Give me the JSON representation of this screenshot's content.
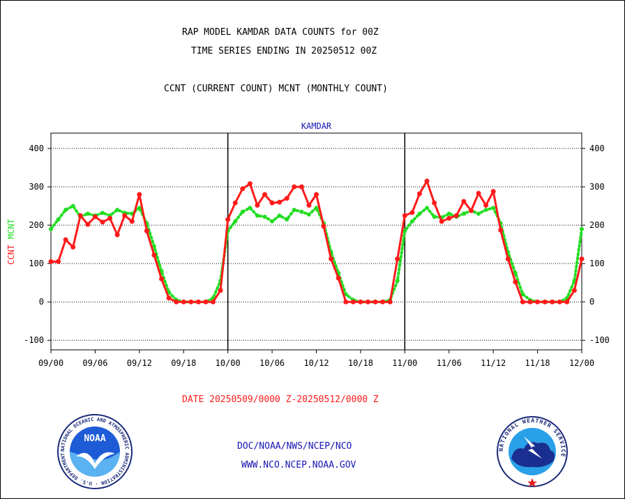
{
  "header": {
    "line1": "RAP MODEL KAMDAR DATA COUNTS for 00Z",
    "line2": "TIME SERIES ENDING IN 20250512 00Z",
    "line3": "CCNT (CURRENT COUNT) MCNT (MONTHLY COUNT)"
  },
  "footer": {
    "date_range": "DATE 20250509/0000 Z-20250512/0000 Z",
    "org": "DOC/NOAA/NWS/NCEP/NCO",
    "url": "WWW.NCO.NCEP.NOAA.GOV",
    "noaa_logo_text": "NOAA",
    "noaa_ring_text": "NATIONAL OCEANIC AND ATMOSPHERIC ADMINISTRATION · U.S. DEPARTMENT OF COMMERCE",
    "nws_ring_text": "NATIONAL WEATHER SERVICE"
  },
  "colors": {
    "ccnt": "#ff1a1a",
    "mcnt": "#22dd22",
    "title": "#1515b0",
    "date": "#ff1a1a",
    "footer": "#1515b0"
  },
  "chart_data": {
    "type": "line",
    "title": "KAMDAR",
    "ylabel_parts": [
      "CCNT",
      "MCNT"
    ],
    "ylim": [
      -125,
      440
    ],
    "yticks": [
      -100,
      0,
      100,
      200,
      300,
      400
    ],
    "ytick_labels": [
      "-100",
      "0",
      "100",
      "200",
      "300",
      "400"
    ],
    "xlim": [
      0,
      72
    ],
    "xticks": [
      0,
      6,
      12,
      18,
      24,
      30,
      36,
      42,
      48,
      54,
      60,
      66,
      72
    ],
    "xtick_labels": [
      "09/00",
      "09/06",
      "09/12",
      "09/18",
      "10/00",
      "10/06",
      "10/12",
      "10/18",
      "11/00",
      "11/06",
      "11/12",
      "11/18",
      "12/00"
    ],
    "day_dividers": [
      24,
      48
    ],
    "grid": true,
    "x": [
      0,
      1,
      2,
      3,
      4,
      5,
      6,
      7,
      8,
      9,
      10,
      11,
      12,
      13,
      14,
      15,
      16,
      17,
      18,
      19,
      20,
      21,
      22,
      23,
      24,
      25,
      26,
      27,
      28,
      29,
      30,
      31,
      32,
      33,
      34,
      35,
      36,
      37,
      38,
      39,
      40,
      41,
      42,
      43,
      44,
      45,
      46,
      47,
      48,
      49,
      50,
      51,
      52,
      53,
      54,
      55,
      56,
      57,
      58,
      59,
      60,
      61,
      62,
      63,
      64,
      65,
      66,
      67,
      68,
      69,
      70,
      71,
      72
    ],
    "series": [
      {
        "name": "CCNT",
        "values": [
          105,
          105,
          162,
          143,
          225,
          202,
          222,
          208,
          218,
          175,
          225,
          210,
          280,
          185,
          122,
          60,
          10,
          0,
          0,
          0,
          0,
          0,
          0,
          30,
          215,
          258,
          295,
          308,
          252,
          280,
          258,
          260,
          270,
          300,
          300,
          252,
          280,
          197,
          112,
          62,
          0,
          0,
          0,
          0,
          0,
          0,
          0,
          112,
          225,
          233,
          282,
          315,
          258,
          210,
          218,
          225,
          262,
          238,
          283,
          252,
          288,
          187,
          112,
          52,
          0,
          0,
          0,
          0,
          0,
          0,
          0,
          30,
          112
        ]
      },
      {
        "name": "MCNT",
        "values": [
          190,
          215,
          240,
          250,
          222,
          230,
          225,
          232,
          225,
          240,
          232,
          230,
          245,
          205,
          145,
          80,
          25,
          5,
          0,
          0,
          0,
          0,
          10,
          55,
          185,
          210,
          235,
          245,
          225,
          222,
          210,
          225,
          215,
          240,
          235,
          228,
          245,
          205,
          130,
          75,
          20,
          5,
          0,
          0,
          0,
          0,
          5,
          55,
          185,
          210,
          230,
          245,
          222,
          220,
          230,
          222,
          230,
          238,
          230,
          240,
          245,
          205,
          130,
          75,
          20,
          5,
          0,
          0,
          0,
          0,
          10,
          55,
          190
        ]
      }
    ]
  }
}
